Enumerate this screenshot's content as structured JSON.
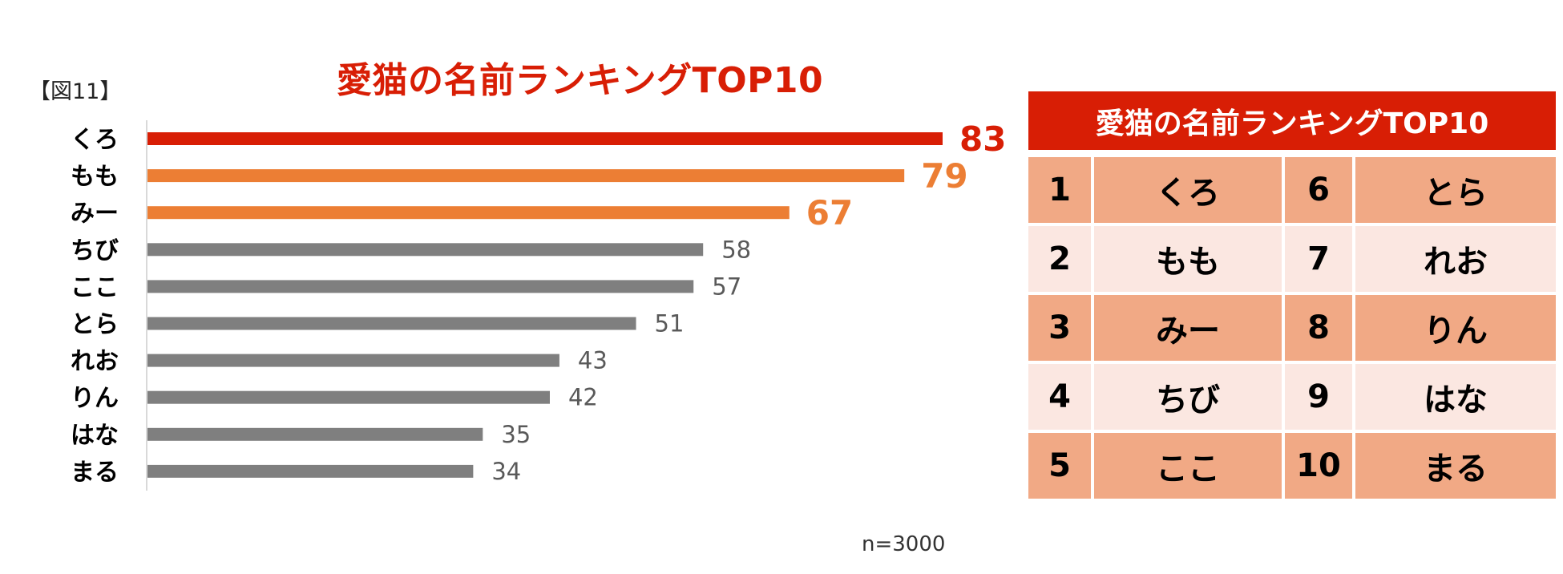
{
  "figure_label": "【図11】",
  "note": "n=3000",
  "chart_data": {
    "type": "bar",
    "orientation": "horizontal",
    "title": "愛猫の名前ランキングTOP10",
    "categories": [
      "くろ",
      "もも",
      "みー",
      "ちび",
      "ここ",
      "とら",
      "れお",
      "りん",
      "はな",
      "まる"
    ],
    "values": [
      83,
      79,
      67,
      58,
      57,
      51,
      43,
      42,
      35,
      34
    ],
    "bar_colors": [
      "#d81e05",
      "#ec7e34",
      "#ec7e34",
      "#7f7f7f",
      "#7f7f7f",
      "#7f7f7f",
      "#7f7f7f",
      "#7f7f7f",
      "#7f7f7f",
      "#7f7f7f"
    ],
    "label_colors": [
      "#d81e05",
      "#ec7e34",
      "#ec7e34",
      "#595959",
      "#595959",
      "#595959",
      "#595959",
      "#595959",
      "#595959",
      "#595959"
    ],
    "xlim": [
      0,
      83
    ],
    "grid": false,
    "legend": "none"
  },
  "ranking_table": {
    "title": "愛猫の名前ランキングTOP10",
    "rows": [
      {
        "rank_a": "1",
        "name_a": "くろ",
        "rank_b": "6",
        "name_b": "とら"
      },
      {
        "rank_a": "2",
        "name_a": "もも",
        "rank_b": "7",
        "name_b": "れお"
      },
      {
        "rank_a": "3",
        "name_a": "みー",
        "rank_b": "8",
        "name_b": "りん"
      },
      {
        "rank_a": "4",
        "name_a": "ちび",
        "rank_b": "9",
        "name_b": "はな"
      },
      {
        "rank_a": "5",
        "name_a": "ここ",
        "rank_b": "10",
        "name_b": "まる"
      }
    ],
    "colors": {
      "header": "#d81e05",
      "odd_row": "#f1a985",
      "even_row": "#fbe7e1"
    }
  }
}
